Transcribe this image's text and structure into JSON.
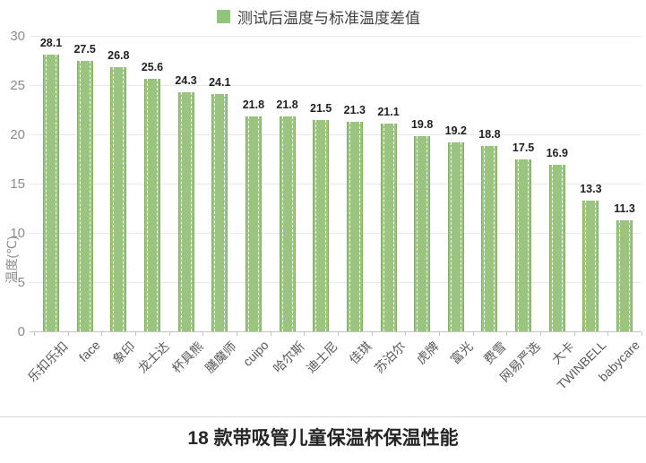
{
  "chart_data": {
    "type": "bar",
    "title": "18 款带吸管儿童保温杯保温性能",
    "legend": "测试后温度与标准温度差值",
    "ylabel": "温度(℃)",
    "categories": [
      "乐扣乐扣",
      "face",
      "象印",
      "龙士达",
      "杯具熊",
      "膳魔师",
      "cuipo",
      "哈尔斯",
      "迪士尼",
      "佳琪",
      "苏泊尔",
      "虎牌",
      "富光",
      "费雪",
      "网易严选",
      "大卡",
      "TWINBELL",
      "babycare"
    ],
    "values": [
      28.1,
      27.5,
      26.8,
      25.6,
      24.3,
      24.1,
      21.8,
      21.8,
      21.5,
      21.3,
      21.1,
      19.8,
      19.2,
      18.8,
      17.5,
      16.9,
      13.3,
      11.3
    ],
    "ylim": [
      0,
      30
    ],
    "yticks": [
      0,
      5,
      10,
      15,
      20,
      25,
      30
    ],
    "grid": true,
    "legend_position": "top",
    "bar_color": "#9ac47f",
    "bar_edge_color": "#82b069",
    "legend_marker_color": "#93c47d"
  }
}
